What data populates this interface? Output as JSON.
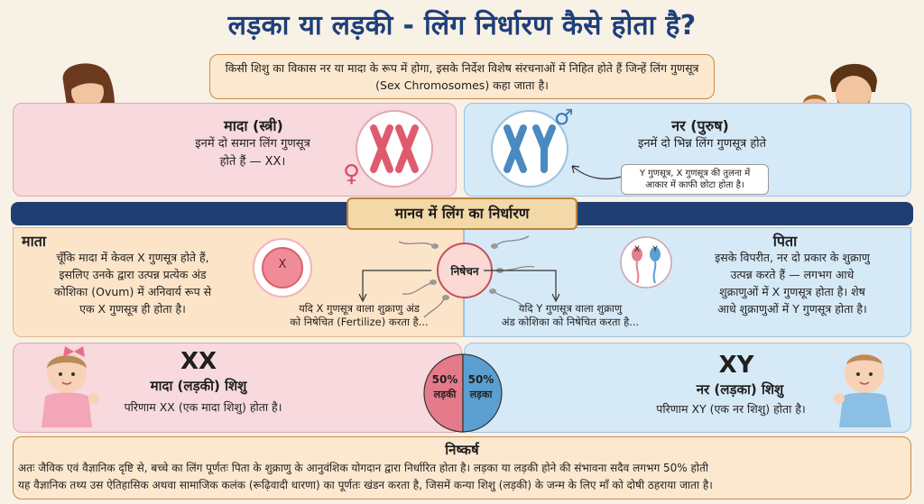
{
  "title": "लड़का या लड़की - लिंग निर्धारण कैसे होता है?",
  "intro": "किसी शिशु का विकास नर या मादा के रूप में होगा, इसके निर्देश विशेष संरचनाओं में निहित होते हैं जिन्हें लिंग गुणसूत्र (Sex Chromosomes) कहा जाता है।",
  "female": {
    "heading": "मादा (स्त्री)",
    "text_line1": "इनमें दो समान लिंग गुणसूत्र",
    "text_line2": "होते हैं — XX।",
    "chromosome_label": "XX",
    "symbol": "♀"
  },
  "male": {
    "heading": "नर (पुरुष)",
    "text": "इनमें दो भिन्न लिंग गुणसूत्र होते",
    "chromosome_label": "XY",
    "symbol": "♂",
    "callout_line1": "Y गुणसूत्र, X गुणसूत्र की तुलना में",
    "callout_line2": "आकार में काफी छोटा होता है।"
  },
  "band_label": "मानव में लिंग का निर्धारण",
  "mother": {
    "heading": "माता",
    "lines": [
      "चूँकि मादा में केवल X गुणसूत्र होते हैं,",
      "इसलिए उनके द्वारा उत्पन्न प्रत्येक अंड",
      "कोशिका (Ovum) में अनिवार्य रूप से",
      "एक X गुणसूत्र ही होता है।"
    ],
    "egg_label": "X"
  },
  "father": {
    "heading": "पिता",
    "lines": [
      "इसके विपरीत, नर दो प्रकार के शुक्राणु",
      "उत्पन्न करते हैं — लगभग आधे",
      "शुक्राणुओं में X गुणसूत्र होता है। शेष",
      "आधे शुक्राणुओं में Y गुणसूत्र होता है।"
    ],
    "sperm_x": "X",
    "sperm_y": "Y"
  },
  "fertilization": {
    "center_label": "निषेचन",
    "x_case_line1": "यदि X गुणसूत्र वाला शुक्राणु अंड",
    "x_case_line2": "को निषेचित (Fertilize) करता है...",
    "y_case_line1": "यदि Y गुणसूत्र वाला शुक्राणु",
    "y_case_line2": "अंड कोशिका को निषेचित करता है..."
  },
  "result_girl": {
    "code": "XX",
    "heading": "मादा (लड़की) शिशु",
    "text": "परिणाम XX (एक मादा शिशु) होता है।"
  },
  "result_boy": {
    "code": "XY",
    "heading": "नर (लड़का) शिशु",
    "text": "परिणाम XY (एक नर शिशु) होता है।"
  },
  "probability": {
    "girl_percent": "50%",
    "girl_label": "लड़की",
    "boy_percent": "50%",
    "boy_label": "लड़का"
  },
  "conclusion": {
    "heading": "निष्कर्ष",
    "line1": "अतः जैविक एवं वैज्ञानिक दृष्टि से, बच्चे का लिंग पूर्णतः पिता के शुक्राणु के आनुवंशिक योगदान द्वारा निर्धारित होता है। लड़का या लड़की होने की संभावना सदैव लगभग 50% होती",
    "line2": "यह वैज्ञानिक तथ्य उस ऐतिहासिक अथवा सामाजिक कलंक (रूढ़िवादी धारणा) का पूर्णतः खंडन करता है, जिसमें कन्या शिशु (लड़की) के जन्म के लिए माँ को दोषी ठहराया जाता है।"
  },
  "colors": {
    "title": "#1f3f7a",
    "pink_panel": "#f7d9de",
    "blue_panel": "#d6e9f6",
    "peach_panel": "#fbe8cf",
    "band": "#1f3f72",
    "girl_slice": "#e57a8a",
    "boy_slice": "#5b9fd1"
  }
}
